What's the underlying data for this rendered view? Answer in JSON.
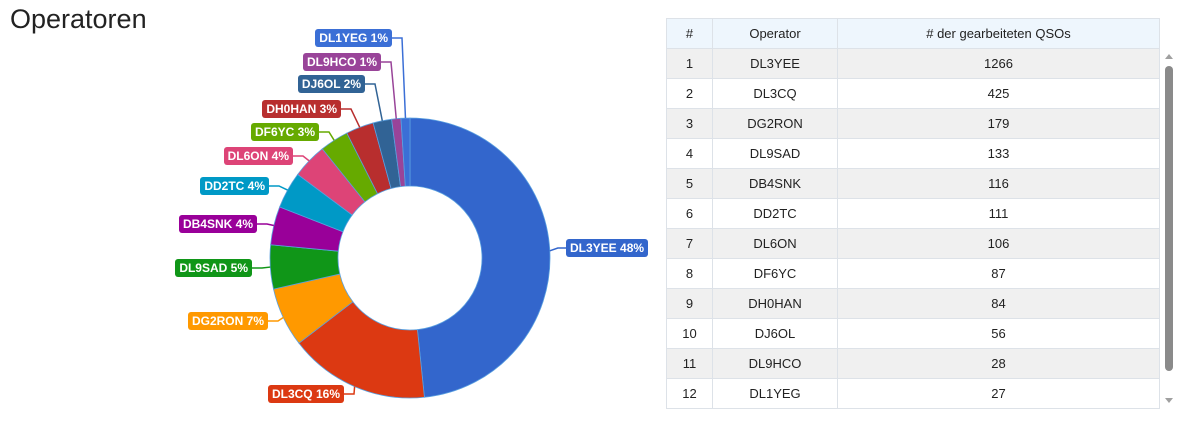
{
  "title": "Operatoren",
  "table": {
    "headers": [
      "#",
      "Operator",
      "# der gearbeiteten QSOs"
    ],
    "rows": [
      [
        "1",
        "DL3YEE",
        "1266"
      ],
      [
        "2",
        "DL3CQ",
        "425"
      ],
      [
        "3",
        "DG2RON",
        "179"
      ],
      [
        "4",
        "DL9SAD",
        "133"
      ],
      [
        "5",
        "DB4SNK",
        "116"
      ],
      [
        "6",
        "DD2TC",
        "111"
      ],
      [
        "7",
        "DL6ON",
        "106"
      ],
      [
        "8",
        "DF6YC",
        "87"
      ],
      [
        "9",
        "DH0HAN",
        "84"
      ],
      [
        "10",
        "DJ6OL",
        "56"
      ],
      [
        "11",
        "DL9HCO",
        "28"
      ],
      [
        "12",
        "DL1YEG",
        "27"
      ]
    ]
  },
  "chart_data": {
    "type": "pie",
    "donut": true,
    "slices": [
      {
        "name": "DL3YEE",
        "value": 1266,
        "label": "DL3YEE 48%",
        "color": "#3366cc"
      },
      {
        "name": "DL3CQ",
        "value": 425,
        "label": "DL3CQ 16%",
        "color": "#dc3912"
      },
      {
        "name": "DG2RON",
        "value": 179,
        "label": "DG2RON 7%",
        "color": "#ff9900"
      },
      {
        "name": "DL9SAD",
        "value": 133,
        "label": "DL9SAD 5%",
        "color": "#109618"
      },
      {
        "name": "DB4SNK",
        "value": 116,
        "label": "DB4SNK 4%",
        "color": "#990099"
      },
      {
        "name": "DD2TC",
        "value": 111,
        "label": "DD2TC 4%",
        "color": "#0099c6"
      },
      {
        "name": "DL6ON",
        "value": 106,
        "label": "DL6ON 4%",
        "color": "#dd4477"
      },
      {
        "name": "DF6YC",
        "value": 87,
        "label": "DF6YC 3%",
        "color": "#66aa00"
      },
      {
        "name": "DH0HAN",
        "value": 84,
        "label": "DH0HAN 3%",
        "color": "#b82e2e"
      },
      {
        "name": "DJ6OL",
        "value": 56,
        "label": "DJ6OL 2%",
        "color": "#316395"
      },
      {
        "name": "DL9HCO",
        "value": 28,
        "label": "DL9HCO 1%",
        "color": "#994499"
      },
      {
        "name": "DL1YEG",
        "value": 27,
        "label": "DL1YEG 1%",
        "color": "#3b6fd6"
      }
    ]
  }
}
